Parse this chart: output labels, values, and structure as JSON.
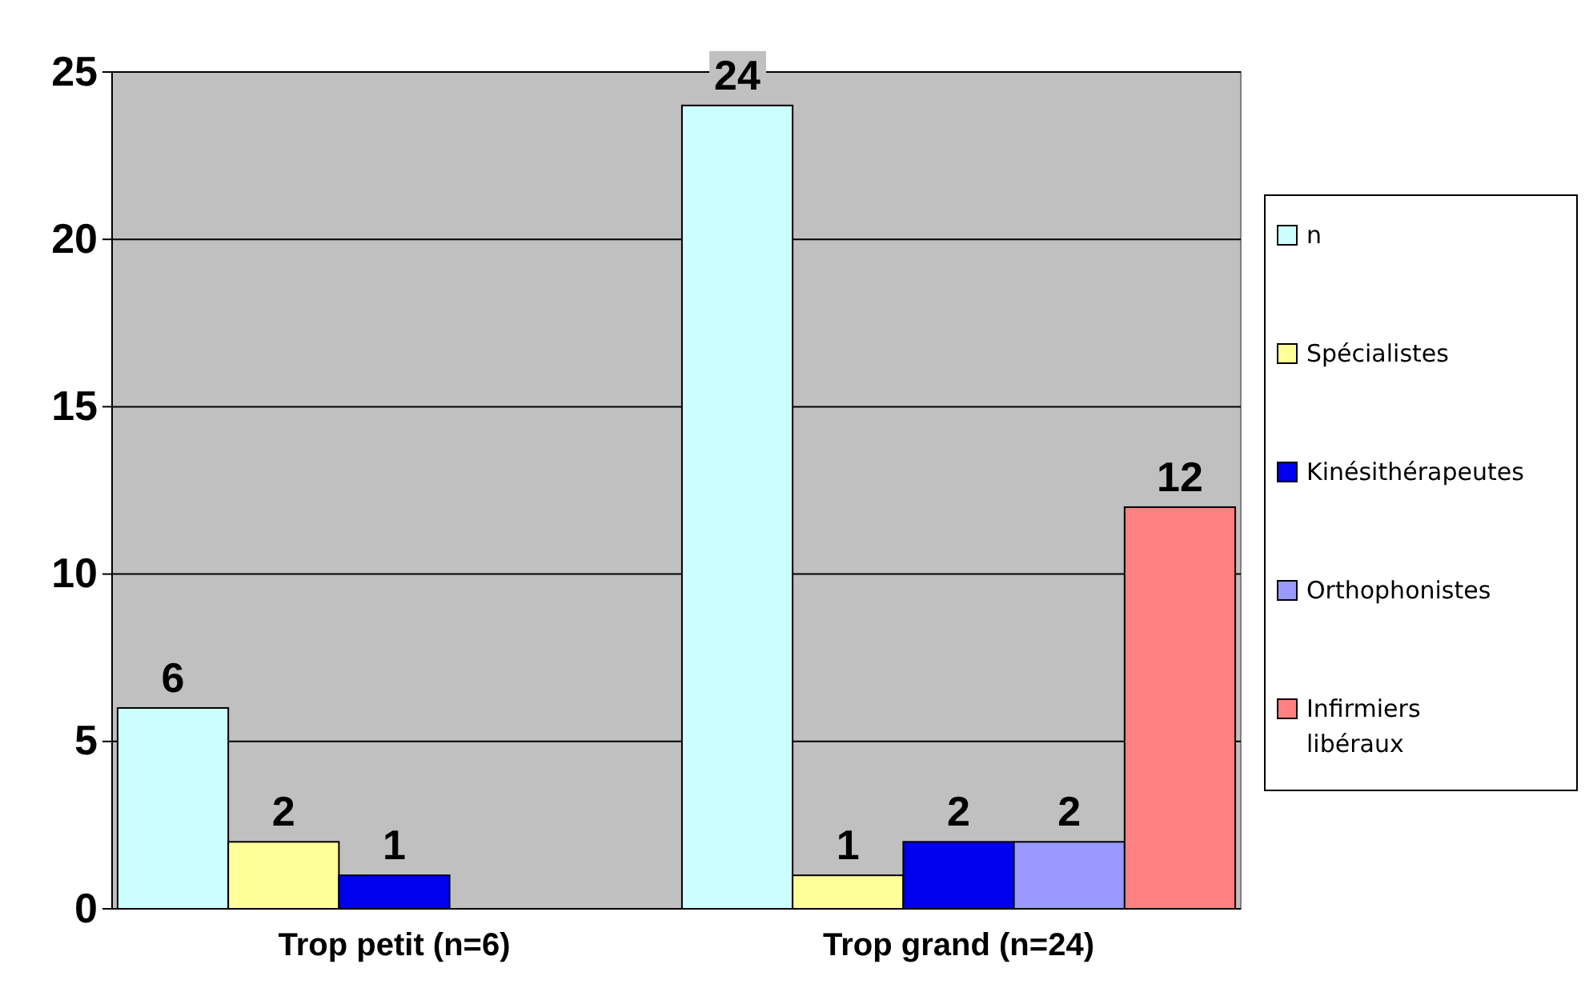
{
  "chart_data": {
    "type": "bar",
    "categories": [
      "Trop petit (n=6)",
      "Trop grand (n=24)"
    ],
    "series": [
      {
        "name": "n",
        "color": "#ccffff",
        "values": [
          6,
          24
        ]
      },
      {
        "name": "Spécialistes",
        "color": "#ffff99",
        "values": [
          2,
          1
        ]
      },
      {
        "name": "Kinésithérapeutes",
        "color": "#0000ee",
        "values": [
          1,
          2
        ]
      },
      {
        "name": "Orthophonistes",
        "color": "#9999ff",
        "values": [
          null,
          2
        ]
      },
      {
        "name": "Infirmiers libéraux",
        "color": "#ff8080",
        "values": [
          null,
          12
        ]
      }
    ],
    "ylim": [
      0,
      25
    ],
    "yticks": [
      0,
      5,
      10,
      15,
      20,
      25
    ],
    "grid": "y",
    "legend": "right",
    "data_labels": true
  }
}
